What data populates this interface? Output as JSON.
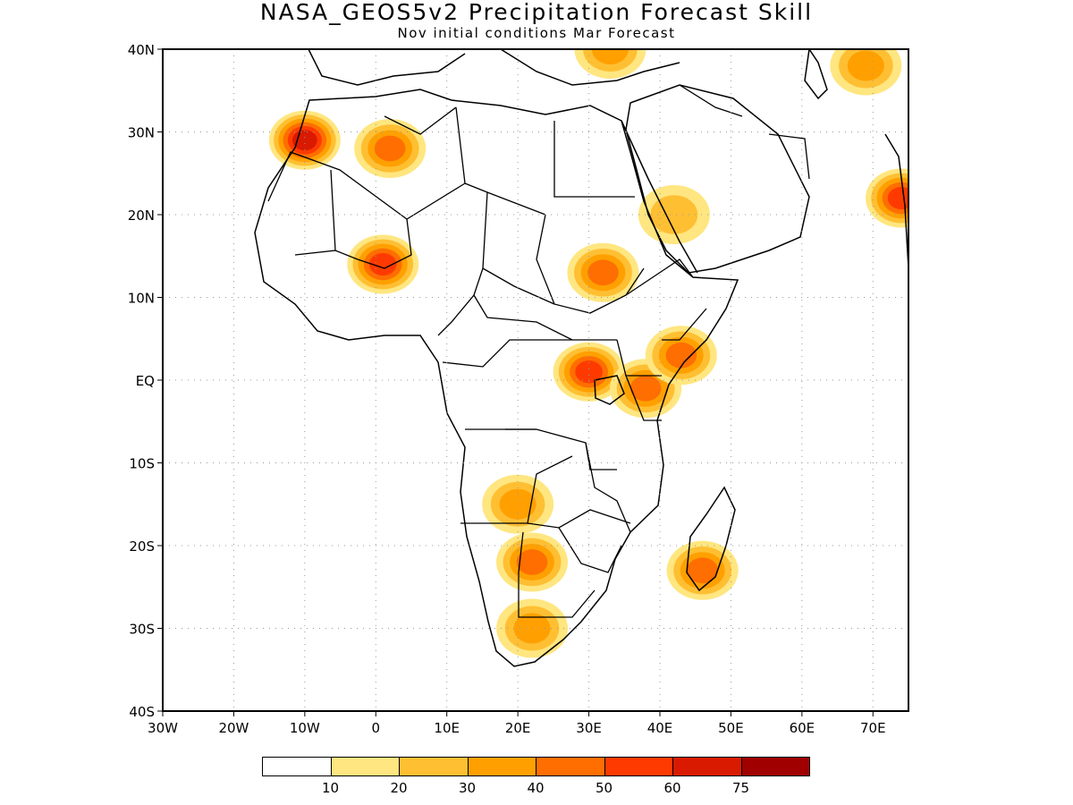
{
  "title": "NASA_GEOS5v2 Precipitation Forecast Skill",
  "subtitle": "Nov initial conditions  Mar Forecast",
  "map": {
    "lon_range": [
      -30,
      75
    ],
    "lat_range": [
      -40,
      40
    ],
    "x_ticks": [
      "30W",
      "20W",
      "10W",
      "0",
      "10E",
      "20E",
      "30E",
      "40E",
      "50E",
      "60E",
      "70E"
    ],
    "y_ticks": [
      "40N",
      "30N",
      "20N",
      "10N",
      "EQ",
      "10S",
      "20S",
      "30S",
      "40S"
    ],
    "grid": "dotted"
  },
  "legend": {
    "colors": [
      "#ffffff",
      "#ffe680",
      "#ffbf33",
      "#ffa000",
      "#ff6e00",
      "#ff3a00",
      "#d91a00",
      "#a00000"
    ],
    "labels": [
      "10",
      "20",
      "30",
      "40",
      "50",
      "60",
      "75"
    ]
  },
  "chart_data": {
    "type": "heatmap",
    "title": "NASA_GEOS5v2 Precipitation Forecast Skill",
    "subtitle": "Nov initial conditions  Mar Forecast",
    "x_range": [
      -30,
      75
    ],
    "y_range": [
      -40,
      40
    ],
    "levels": [
      10,
      20,
      30,
      40,
      50,
      60,
      75
    ],
    "regions": [
      {
        "lon": 2,
        "lat": 28,
        "value": 45
      },
      {
        "lon": 1,
        "lat": 14,
        "value": 55
      },
      {
        "lon": -10,
        "lat": 29,
        "value": 60
      },
      {
        "lon": 32,
        "lat": 13,
        "value": 40
      },
      {
        "lon": 30,
        "lat": 1,
        "value": 50
      },
      {
        "lon": 38,
        "lat": -1,
        "value": 40
      },
      {
        "lon": 43,
        "lat": 3,
        "value": 45
      },
      {
        "lon": 20,
        "lat": -15,
        "value": 30
      },
      {
        "lon": 22,
        "lat": -22,
        "value": 40
      },
      {
        "lon": 22,
        "lat": -30,
        "value": 35
      },
      {
        "lon": 46,
        "lat": -23,
        "value": 40
      },
      {
        "lon": 42,
        "lat": 20,
        "value": 25
      },
      {
        "lon": 74,
        "lat": 22,
        "value": 55
      },
      {
        "lon": 33,
        "lat": 40,
        "value": 35
      },
      {
        "lon": 69,
        "lat": 38,
        "value": 30
      }
    ]
  }
}
